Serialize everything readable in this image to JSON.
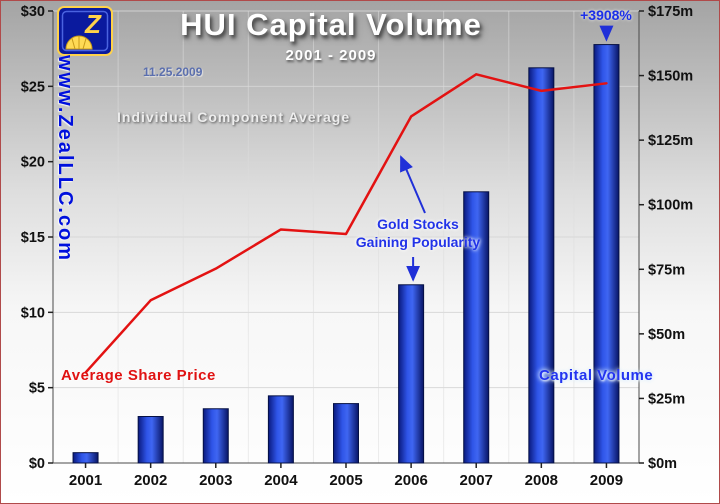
{
  "header": {
    "title": "HUI Capital Volume",
    "subtitle": "2001 - 2009",
    "date": "11.25.2009",
    "note": "Individual Component Average",
    "watermark": "www.ZealLLC.com"
  },
  "annotations": {
    "gain": "+3908%",
    "gold_line1": "Gold Stocks",
    "gold_line2": "Gaining Popularity",
    "share_price": "Average Share Price",
    "capital_volume": "Capital Volume"
  },
  "colors": {
    "bar_blue": "#1531c4",
    "line_red": "#e31212",
    "arrow_blue": "#2030d8",
    "axis_text": "#111111"
  },
  "chart_data": {
    "type": "combo",
    "title": "HUI Capital Volume",
    "subtitle": "2001 - 2009",
    "categories": [
      "2001",
      "2002",
      "2003",
      "2004",
      "2005",
      "2006",
      "2007",
      "2008",
      "2009"
    ],
    "series": [
      {
        "name": "Capital Volume",
        "type": "bar",
        "axis": "right",
        "unit": "millions USD",
        "color": "#1531c4",
        "values": [
          4,
          18,
          21,
          26,
          23,
          69,
          105,
          153,
          162
        ]
      },
      {
        "name": "Average Share Price",
        "type": "line",
        "axis": "left",
        "unit": "USD",
        "color": "#e31212",
        "values": [
          6.0,
          10.8,
          12.9,
          15.5,
          15.2,
          23.0,
          25.8,
          24.7,
          25.2
        ]
      }
    ],
    "left_axis": {
      "min": 0,
      "max": 30,
      "step": 5,
      "ticks": [
        "$0",
        "$5",
        "$10",
        "$15",
        "$20",
        "$25",
        "$30"
      ]
    },
    "right_axis": {
      "min": 0,
      "max": 175,
      "step": 25,
      "ticks": [
        "$0m",
        "$25m",
        "$50m",
        "$75m",
        "$100m",
        "$125m",
        "$150m",
        "$175m"
      ]
    },
    "grid": true,
    "legend_position": "none"
  }
}
